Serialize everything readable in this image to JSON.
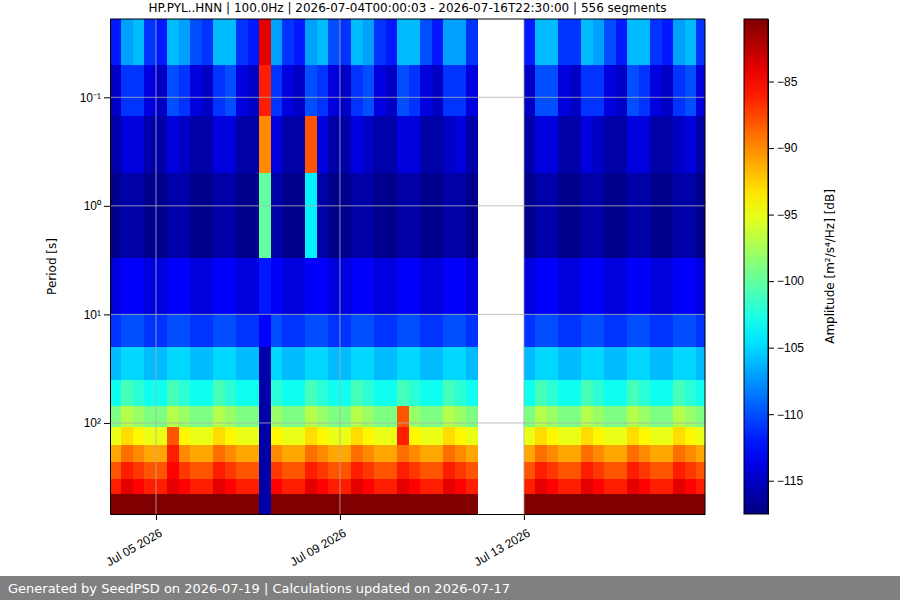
{
  "chart_data": {
    "type": "heatmap",
    "title": "HP.PYL..HNN | 100.0Hz | 2026-07-04T00:00:03 - 2026-07-16T22:30:00 | 556 segments",
    "y_label": "Period [s]",
    "footer": "Generated by SeedPSD on 2026-07-19 | Calculations updated on 2026-07-17",
    "log": "y",
    "grid": true,
    "xlim": [
      "2026-07-04T00:00:03",
      "2026-07-16T22:30:00"
    ],
    "xticks": [
      {
        "value": "2026-07-05",
        "label": "Jul 05 2026"
      },
      {
        "value": "2026-07-09",
        "label": "Jul 09 2026"
      },
      {
        "value": "2026-07-13",
        "label": "Jul 13 2026"
      }
    ],
    "ylim": [
      0.019,
      690
    ],
    "yticks": [
      {
        "value": 0.1,
        "label": "10⁻¹"
      },
      {
        "value": 1,
        "label": "10⁰"
      },
      {
        "value": 10,
        "label": "10¹"
      },
      {
        "value": 100,
        "label": "10²"
      }
    ],
    "x_bins": [
      "2026-07-04T00:00:03",
      "2026-07-04T06:00:00",
      "2026-07-04T12:00:00",
      "2026-07-04T18:00:00",
      "2026-07-05T00:00:00",
      "2026-07-05T06:00:00",
      "2026-07-05T12:00:00",
      "2026-07-05T18:00:00",
      "2026-07-06T00:00:00",
      "2026-07-06T06:00:00",
      "2026-07-06T12:00:00",
      "2026-07-06T18:00:00",
      "2026-07-07T00:00:00",
      "2026-07-07T06:00:00",
      "2026-07-07T12:00:00",
      "2026-07-07T18:00:00",
      "2026-07-08T00:00:00",
      "2026-07-08T06:00:00",
      "2026-07-08T12:00:00",
      "2026-07-08T18:00:00",
      "2026-07-09T00:00:00",
      "2026-07-09T06:00:00",
      "2026-07-09T12:00:00",
      "2026-07-09T18:00:00",
      "2026-07-10T00:00:00",
      "2026-07-10T06:00:00",
      "2026-07-10T12:00:00",
      "2026-07-10T18:00:00",
      "2026-07-11T00:00:00",
      "2026-07-11T06:00:00",
      "2026-07-11T12:00:00",
      "2026-07-11T18:00:00",
      "2026-07-12T00:00:00",
      "2026-07-12T06:00:00",
      "2026-07-12T12:00:00",
      "2026-07-12T18:00:00",
      "2026-07-13T00:00:00",
      "2026-07-13T06:00:00",
      "2026-07-13T12:00:00",
      "2026-07-13T18:00:00",
      "2026-07-14T00:00:00",
      "2026-07-14T06:00:00",
      "2026-07-14T12:00:00",
      "2026-07-14T18:00:00",
      "2026-07-15T00:00:00",
      "2026-07-15T06:00:00",
      "2026-07-15T12:00:00",
      "2026-07-15T18:00:00",
      "2026-07-16T00:00:00",
      "2026-07-16T06:00:00",
      "2026-07-16T12:00:00",
      "2026-07-16T18:00:00",
      "2026-07-16T22:30:00"
    ],
    "y_bins": [
      0.019,
      0.05,
      0.15,
      0.5,
      3,
      10,
      20,
      40,
      70,
      110,
      160,
      230,
      330,
      450,
      690
    ],
    "z": [
      [
        -112,
        -107,
        -106,
        -111,
        -112,
        -106,
        -107,
        -110,
        -111,
        -106,
        -106,
        -111,
        -112,
        -84,
        -107,
        -111,
        -112,
        -107,
        -106,
        -110,
        -111,
        -106,
        -107,
        -111,
        -112,
        -106,
        -106,
        -110,
        -112,
        -107,
        -107,
        -111,
        null,
        null,
        null,
        null,
        -112,
        -106,
        -106,
        -111,
        -111,
        -106,
        -107,
        -110,
        -112,
        -106,
        -106,
        -111,
        -112,
        -107,
        -106,
        -111
      ],
      [
        -115,
        -111,
        -111,
        -114,
        -115,
        -110,
        -111,
        -114,
        -115,
        -111,
        -110,
        -114,
        -115,
        -86,
        -111,
        -114,
        -115,
        -110,
        -111,
        -114,
        -115,
        -111,
        -110,
        -114,
        -115,
        -110,
        -111,
        -114,
        -115,
        -111,
        -111,
        -114,
        null,
        null,
        null,
        null,
        -115,
        -110,
        -110,
        -114,
        -115,
        -111,
        -111,
        -114,
        -115,
        -110,
        -111,
        -114,
        -115,
        -111,
        -110,
        -114
      ],
      [
        -116,
        -114,
        -114,
        -116,
        -116,
        -114,
        -115,
        -116,
        -116,
        -114,
        -114,
        -116,
        -116,
        -90,
        -114,
        -116,
        -116,
        -88,
        -114,
        -116,
        -116,
        -114,
        -115,
        -116,
        -116,
        -114,
        -114,
        -116,
        -116,
        -115,
        -114,
        -116,
        null,
        null,
        null,
        null,
        -116,
        -114,
        -114,
        -116,
        -116,
        -114,
        -115,
        -116,
        -116,
        -114,
        -114,
        -116,
        -116,
        -115,
        -114,
        -116
      ],
      [
        -117,
        -116,
        -116,
        -117,
        -117,
        -116,
        -116,
        -117,
        -117,
        -116,
        -116,
        -117,
        -117,
        -100,
        -116,
        -117,
        -117,
        -104,
        -116,
        -117,
        -117,
        -116,
        -116,
        -117,
        -117,
        -116,
        -116,
        -117,
        -117,
        -116,
        -116,
        -117,
        null,
        null,
        null,
        null,
        -117,
        -116,
        -116,
        -117,
        -117,
        -116,
        -116,
        -117,
        -117,
        -116,
        -116,
        -117,
        -117,
        -116,
        -116,
        -117
      ],
      [
        -114,
        -113,
        -113,
        -114,
        -114,
        -113,
        -113,
        -114,
        -114,
        -113,
        -113,
        -114,
        -114,
        -112,
        -113,
        -114,
        -114,
        -113,
        -113,
        -114,
        -114,
        -113,
        -113,
        -114,
        -114,
        -113,
        -113,
        -114,
        -114,
        -113,
        -113,
        -114,
        null,
        null,
        null,
        null,
        -114,
        -113,
        -113,
        -114,
        -114,
        -113,
        -113,
        -114,
        -114,
        -113,
        -113,
        -114,
        -114,
        -113,
        -113,
        -114
      ],
      [
        -111,
        -110,
        -110,
        -111,
        -111,
        -110,
        -110,
        -111,
        -111,
        -110,
        -110,
        -111,
        -111,
        -113,
        -110,
        -111,
        -111,
        -110,
        -110,
        -111,
        -111,
        -110,
        -110,
        -111,
        -111,
        -110,
        -110,
        -111,
        -111,
        -110,
        -110,
        -111,
        null,
        null,
        null,
        null,
        -111,
        -110,
        -110,
        -111,
        -111,
        -110,
        -110,
        -111,
        -111,
        -110,
        -110,
        -111,
        -111,
        -110,
        -110,
        -111
      ],
      [
        -106,
        -105,
        -105,
        -106,
        -106,
        -105,
        -105,
        -106,
        -106,
        -105,
        -105,
        -106,
        -106,
        -116,
        -105,
        -106,
        -106,
        -105,
        -105,
        -106,
        -106,
        -105,
        -105,
        -106,
        -106,
        -105,
        -105,
        -106,
        -106,
        -105,
        -105,
        -106,
        null,
        null,
        null,
        null,
        -106,
        -105,
        -105,
        -106,
        -106,
        -105,
        -105,
        -106,
        -106,
        -105,
        -105,
        -106,
        -106,
        -105,
        -105,
        -106
      ],
      [
        -103,
        -101,
        -102,
        -103,
        -103,
        -101,
        -102,
        -103,
        -103,
        -101,
        -102,
        -103,
        -103,
        -116,
        -102,
        -103,
        -103,
        -101,
        -102,
        -103,
        -103,
        -101,
        -102,
        -103,
        -103,
        -101,
        -102,
        -103,
        -103,
        -101,
        -102,
        -103,
        null,
        null,
        null,
        null,
        -103,
        -101,
        -102,
        -103,
        -103,
        -101,
        -102,
        -103,
        -103,
        -101,
        -102,
        -103,
        -103,
        -101,
        -102,
        -103
      ],
      [
        -99,
        -97,
        -98,
        -99,
        -99,
        -97,
        -98,
        -99,
        -99,
        -97,
        -98,
        -99,
        -99,
        -116,
        -98,
        -99,
        -99,
        -97,
        -98,
        -99,
        -99,
        -97,
        -98,
        -99,
        -99,
        -88,
        -98,
        -99,
        -99,
        -97,
        -98,
        -99,
        null,
        null,
        null,
        null,
        -99,
        -97,
        -98,
        -99,
        -99,
        -97,
        -98,
        -99,
        -99,
        -97,
        -98,
        -99,
        -99,
        -97,
        -98,
        -99
      ],
      [
        -95,
        -93,
        -94,
        -95,
        -95,
        -88,
        -94,
        -95,
        -95,
        -93,
        -94,
        -95,
        -95,
        -116,
        -94,
        -95,
        -95,
        -93,
        -94,
        -95,
        -95,
        -93,
        -94,
        -95,
        -95,
        -86,
        -94,
        -95,
        -95,
        -93,
        -94,
        -95,
        null,
        null,
        null,
        null,
        -95,
        -93,
        -94,
        -95,
        -95,
        -93,
        -94,
        -95,
        -95,
        -93,
        -94,
        -95,
        -95,
        -93,
        -94,
        -95
      ],
      [
        -91,
        -89,
        -90,
        -91,
        -91,
        -86,
        -90,
        -91,
        -91,
        -89,
        -90,
        -91,
        -91,
        -116,
        -90,
        -91,
        -91,
        -89,
        -90,
        -91,
        -91,
        -89,
        -90,
        -91,
        -91,
        -89,
        -90,
        -91,
        -91,
        -89,
        -90,
        -91,
        null,
        null,
        null,
        null,
        -91,
        -89,
        -90,
        -91,
        -91,
        -89,
        -90,
        -91,
        -91,
        -89,
        -90,
        -91,
        -91,
        -89,
        -90,
        -91
      ],
      [
        -88,
        -86,
        -87,
        -88,
        -88,
        -85,
        -87,
        -88,
        -88,
        -86,
        -87,
        -88,
        -88,
        -116,
        -87,
        -88,
        -88,
        -86,
        -87,
        -88,
        -88,
        -86,
        -87,
        -88,
        -88,
        -86,
        -87,
        -88,
        -88,
        -86,
        -87,
        -88,
        null,
        null,
        null,
        null,
        -88,
        -86,
        -87,
        -88,
        -88,
        -86,
        -87,
        -88,
        -88,
        -86,
        -87,
        -88,
        -88,
        -86,
        -87,
        -88
      ],
      [
        -86,
        -84,
        -85,
        -86,
        -86,
        -84,
        -85,
        -86,
        -86,
        -84,
        -85,
        -86,
        -86,
        -116,
        -85,
        -86,
        -86,
        -84,
        -85,
        -86,
        -86,
        -84,
        -85,
        -86,
        -86,
        -84,
        -85,
        -86,
        -86,
        -84,
        -85,
        -86,
        null,
        null,
        null,
        null,
        -86,
        -84,
        -85,
        -86,
        -86,
        -84,
        -85,
        -86,
        -86,
        -84,
        -85,
        -86,
        -86,
        -84,
        -85,
        -86
      ],
      [
        -80,
        -80,
        -80,
        -80,
        -80,
        -80,
        -80,
        -80,
        -80,
        -80,
        -80,
        -80,
        -80,
        -116,
        -80,
        -80,
        -80,
        -80,
        -80,
        -80,
        -80,
        -80,
        -80,
        -80,
        -80,
        -80,
        -80,
        -80,
        -80,
        -80,
        -80,
        -80,
        null,
        null,
        null,
        null,
        -80,
        -80,
        -80,
        -80,
        -80,
        -80,
        -80,
        -80,
        -80,
        -80,
        -80,
        -80,
        -80,
        -80,
        -80,
        -80
      ]
    ],
    "colorbar": {
      "label": "Amplitude [m²/s⁴/Hz] [dB]",
      "range": [
        -117.5,
        -80.3
      ],
      "ticks": [
        {
          "value": -85,
          "label": "−85"
        },
        {
          "value": -90,
          "label": "−90"
        },
        {
          "value": -95,
          "label": "−95"
        },
        {
          "value": -100,
          "label": "−100"
        },
        {
          "value": -105,
          "label": "−105"
        },
        {
          "value": -110,
          "label": "−110"
        },
        {
          "value": -115,
          "label": "−115"
        }
      ]
    }
  }
}
